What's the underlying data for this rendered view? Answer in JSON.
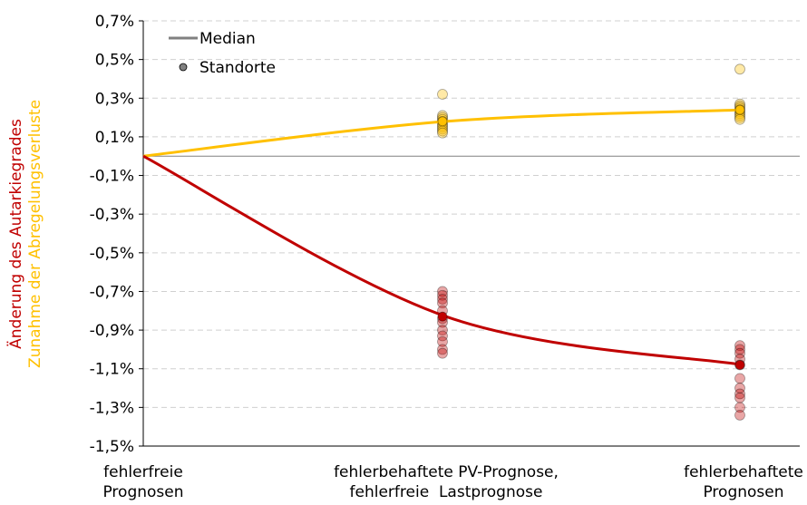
{
  "chart_data": {
    "type": "line",
    "title": "",
    "ylabel_primary": "Änderung des Autarkiegrades",
    "ylabel_secondary": "Zunahme der Abregelungsverluste",
    "ylim": [
      -1.5,
      0.7
    ],
    "yticks": [
      0.7,
      0.5,
      0.3,
      0.1,
      -0.1,
      -0.3,
      -0.5,
      -0.7,
      -0.9,
      -1.1,
      -1.3,
      -1.5
    ],
    "ytick_labels": [
      "0,7%",
      "0,5%",
      "0,3%",
      "0,1%",
      "-0,1%",
      "-0,3%",
      "-0,5%",
      "-0,7%",
      "-0,9%",
      "-1,1%",
      "-1,3%",
      "-1,5%"
    ],
    "categories": [
      [
        "fehlerfreie",
        "Prognosen"
      ],
      [
        "fehlerbehaftete PV-Prognose,",
        "fehlerfreie  Lastprognose"
      ],
      [
        "fehlerbehaftete",
        "Prognosen"
      ]
    ],
    "grid": "horizontal dashed",
    "legend": {
      "placement": "top-left",
      "items": [
        {
          "label": "Median",
          "marker": "line",
          "color": "#808080"
        },
        {
          "label": "Standorte",
          "marker": "point",
          "color": "#808080"
        }
      ]
    },
    "series": [
      {
        "color": "#FFC000",
        "median": [
          0.0,
          0.18,
          0.24
        ],
        "points": [
          [],
          [
            0.32,
            0.21,
            0.2,
            0.19,
            0.18,
            0.17,
            0.16,
            0.15,
            0.14,
            0.13,
            0.12
          ],
          [
            0.45,
            0.27,
            0.26,
            0.25,
            0.24,
            0.23,
            0.22,
            0.21,
            0.2,
            0.19
          ]
        ]
      },
      {
        "color": "#C00000",
        "median": [
          0.0,
          -0.83,
          -1.08
        ],
        "points": [
          [],
          [
            -0.7,
            -0.72,
            -0.74,
            -0.76,
            -0.8,
            -0.84,
            -0.86,
            -0.9,
            -0.93,
            -0.96,
            -1.0,
            -1.02
          ],
          [
            -0.98,
            -1.0,
            -1.02,
            -1.05,
            -1.08,
            -1.15,
            -1.2,
            -1.23,
            -1.25,
            -1.3,
            -1.34
          ]
        ]
      }
    ]
  }
}
